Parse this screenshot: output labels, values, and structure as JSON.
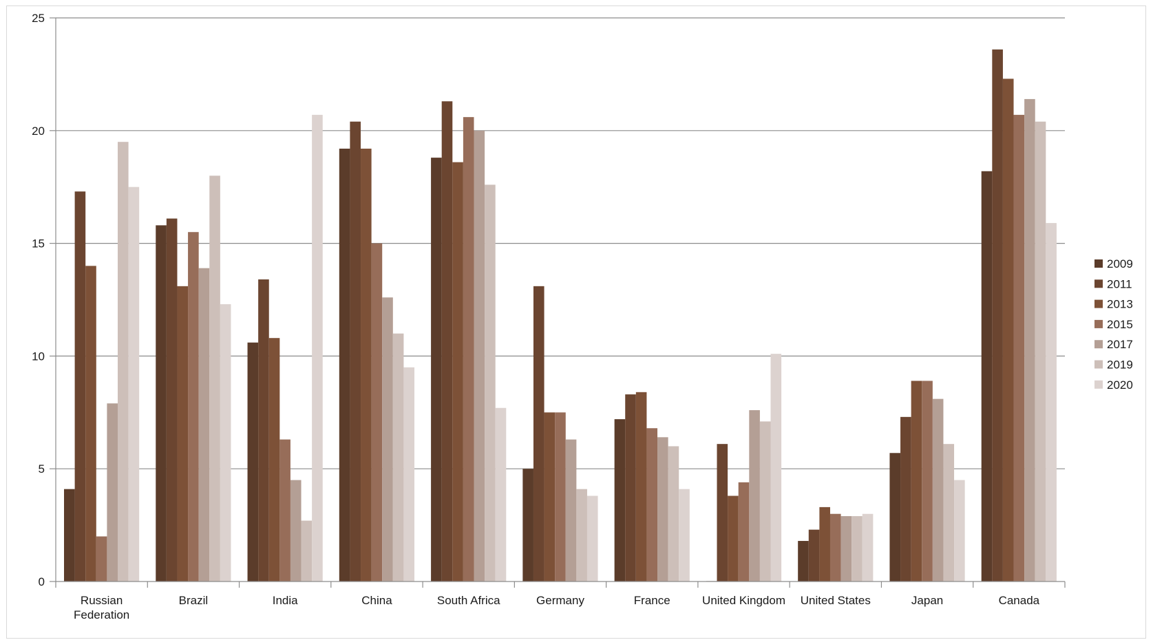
{
  "chart_data": {
    "type": "bar",
    "title": "",
    "xlabel": "",
    "ylabel": "",
    "ylim": [
      0,
      25
    ],
    "yticks": [
      0,
      5,
      10,
      15,
      20,
      25
    ],
    "grid": true,
    "legend_position": "right",
    "categories": [
      "Russian Federation",
      "Brazil",
      "India",
      "China",
      "South Africa",
      "Germany",
      "France",
      "United Kingdom",
      "United States",
      "Japan",
      "Canada"
    ],
    "series": [
      {
        "name": "2009",
        "color": "#5b3c2a",
        "values": [
          4.1,
          15.8,
          10.6,
          19.2,
          18.8,
          5.0,
          7.2,
          0.0,
          1.8,
          5.7,
          18.2
        ]
      },
      {
        "name": "2011",
        "color": "#6b4530",
        "values": [
          17.3,
          16.1,
          13.4,
          20.4,
          21.3,
          13.1,
          8.3,
          6.1,
          2.3,
          7.3,
          23.6
        ]
      },
      {
        "name": "2013",
        "color": "#7d5137",
        "values": [
          14.0,
          13.1,
          10.8,
          19.2,
          18.6,
          7.5,
          8.4,
          3.8,
          3.3,
          8.9,
          22.3
        ]
      },
      {
        "name": "2015",
        "color": "#976d59",
        "values": [
          2.0,
          15.5,
          6.3,
          15.0,
          20.6,
          7.5,
          6.8,
          4.4,
          3.0,
          8.9,
          20.7
        ]
      },
      {
        "name": "2017",
        "color": "#b49f95",
        "values": [
          7.9,
          13.9,
          4.5,
          12.6,
          20.0,
          6.3,
          6.4,
          7.6,
          2.9,
          8.1,
          21.4
        ]
      },
      {
        "name": "2019",
        "color": "#cdbfb9",
        "values": [
          19.5,
          18.0,
          2.7,
          11.0,
          17.6,
          4.1,
          6.0,
          7.1,
          2.9,
          6.1,
          20.4
        ]
      },
      {
        "name": "2020",
        "color": "#dcd2cf",
        "values": [
          17.5,
          12.3,
          20.7,
          9.5,
          7.7,
          3.8,
          4.1,
          10.1,
          3.0,
          4.5,
          15.9
        ]
      }
    ]
  }
}
